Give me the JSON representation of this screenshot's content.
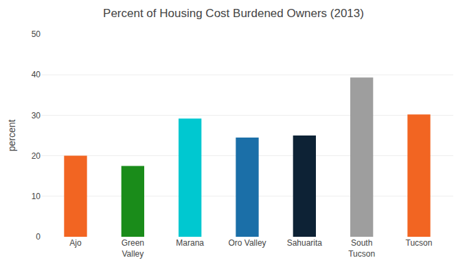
{
  "chart_data": {
    "type": "bar",
    "title": "Percent of Housing Cost Burdened Owners (2013)",
    "categories": [
      "Ajo",
      "Green\nValley",
      "Marana",
      "Oro Valley",
      "Sahuarita",
      "South\nTucson",
      "Tucson"
    ],
    "values": [
      20.0,
      17.5,
      29.2,
      24.5,
      25.0,
      39.3,
      30.2
    ],
    "colors": [
      "#f26522",
      "#1a8c1a",
      "#00c8d0",
      "#1b6fa8",
      "#0d2235",
      "#9e9e9e",
      "#f26522"
    ],
    "ylabel": "percent",
    "ylim": [
      0,
      50
    ],
    "yticks": [
      0,
      10,
      20,
      30,
      40,
      50
    ],
    "grid": true
  }
}
